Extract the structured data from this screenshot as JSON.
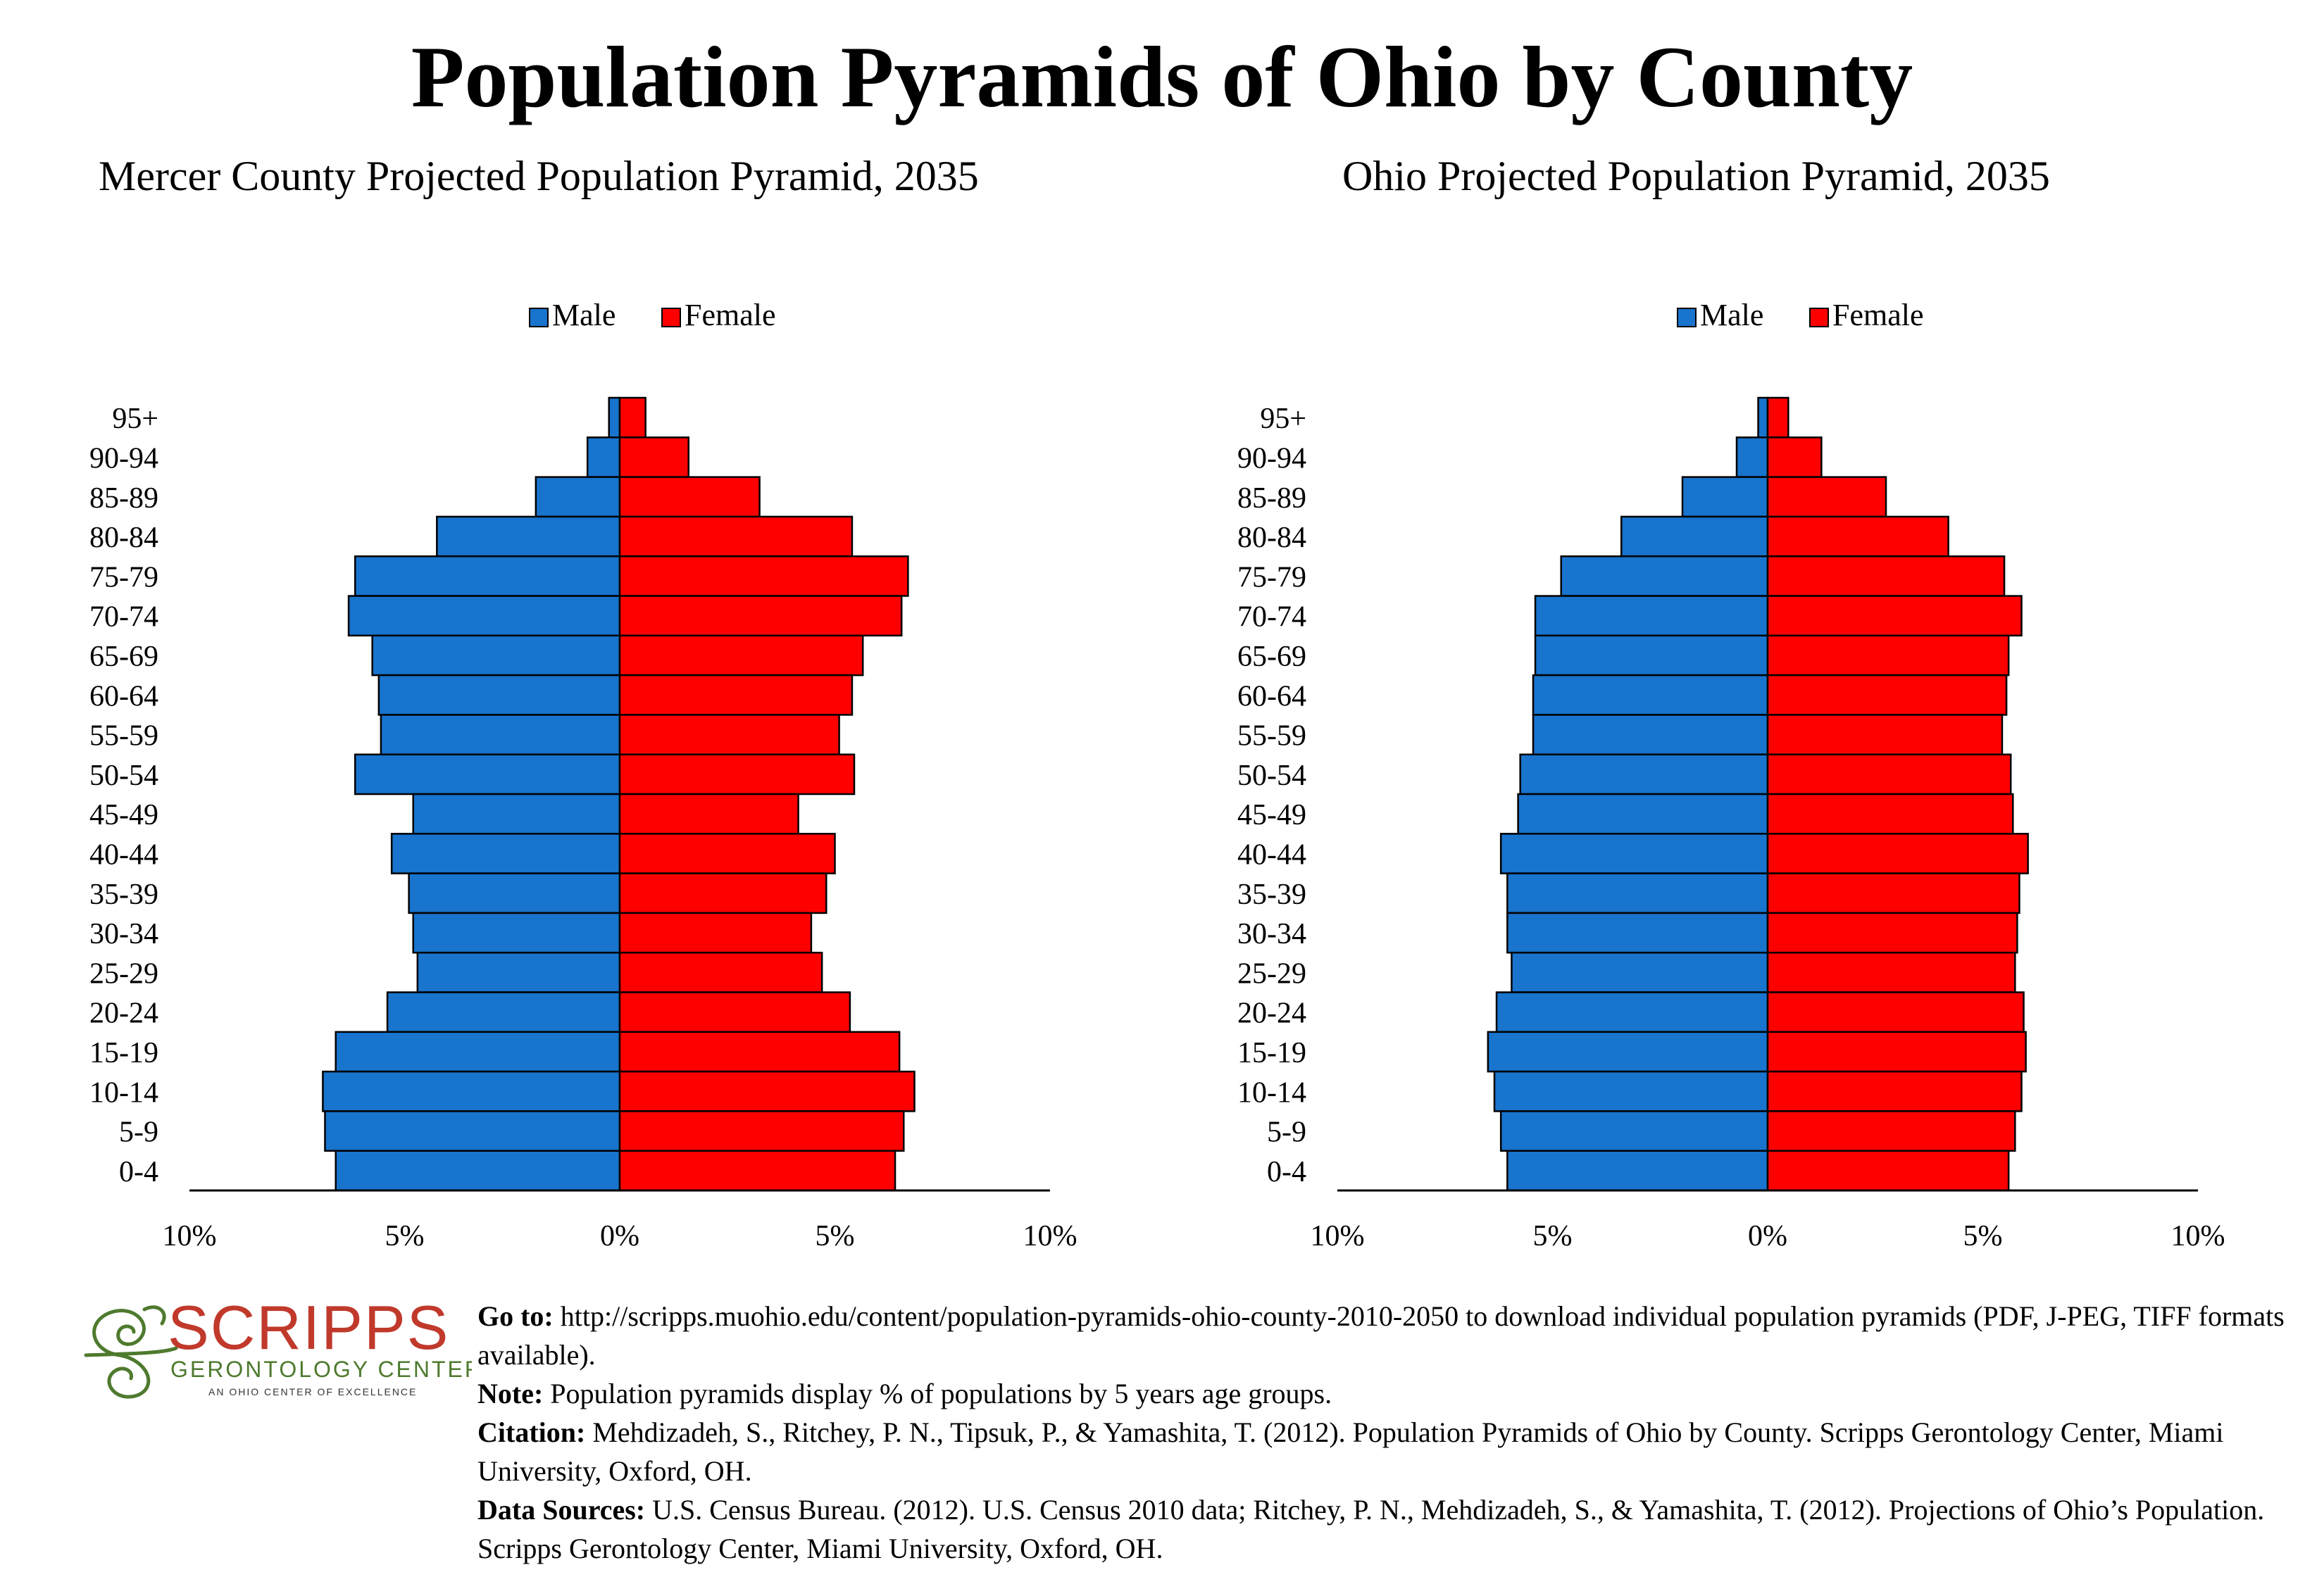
{
  "title": "Population Pyramids of Ohio by County",
  "legend": {
    "male": "Male",
    "female": "Female"
  },
  "colors": {
    "male": "#1874CD",
    "female": "#FF0000",
    "outline": "#000000",
    "logo_red": "#C0392B",
    "logo_green": "#4E7A2E"
  },
  "chart_data": [
    {
      "type": "bar",
      "orientation": "horizontal-pyramid",
      "title": "Mercer County Projected Population Pyramid, 2035",
      "categories": [
        "95+",
        "90-94",
        "85-89",
        "80-84",
        "75-79",
        "70-74",
        "65-69",
        "60-64",
        "55-59",
        "50-54",
        "45-49",
        "40-44",
        "35-39",
        "30-34",
        "25-29",
        "20-24",
        "15-19",
        "10-14",
        "5-9",
        "0-4"
      ],
      "series": [
        {
          "name": "Male",
          "values": [
            0.25,
            0.75,
            1.95,
            4.25,
            6.15,
            6.3,
            5.75,
            5.6,
            5.55,
            6.15,
            4.8,
            5.3,
            4.9,
            4.8,
            4.7,
            5.4,
            6.6,
            6.9,
            6.85,
            6.6
          ]
        },
        {
          "name": "Female",
          "values": [
            0.6,
            1.6,
            3.25,
            5.4,
            6.7,
            6.55,
            5.65,
            5.4,
            5.1,
            5.45,
            4.15,
            5.0,
            4.8,
            4.45,
            4.7,
            5.35,
            6.5,
            6.85,
            6.6,
            6.4
          ]
        }
      ],
      "xlim": [
        -10,
        10
      ],
      "xtick_labels": [
        "10%",
        "5%",
        "0%",
        "5%",
        "10%"
      ],
      "legend_position": "top-center",
      "grid": false
    },
    {
      "type": "bar",
      "orientation": "horizontal-pyramid",
      "title": "Ohio Projected Population Pyramid, 2035",
      "categories": [
        "95+",
        "90-94",
        "85-89",
        "80-84",
        "75-79",
        "70-74",
        "65-69",
        "60-64",
        "55-59",
        "50-54",
        "45-49",
        "40-44",
        "35-39",
        "30-34",
        "25-29",
        "20-24",
        "15-19",
        "10-14",
        "5-9",
        "0-4"
      ],
      "series": [
        {
          "name": "Male",
          "values": [
            0.22,
            0.72,
            1.98,
            3.4,
            4.8,
            5.4,
            5.4,
            5.45,
            5.45,
            5.75,
            5.8,
            6.2,
            6.05,
            6.05,
            5.95,
            6.3,
            6.5,
            6.35,
            6.2,
            6.05
          ]
        },
        {
          "name": "Female",
          "values": [
            0.48,
            1.25,
            2.75,
            4.2,
            5.5,
            5.9,
            5.6,
            5.55,
            5.45,
            5.65,
            5.7,
            6.05,
            5.85,
            5.8,
            5.75,
            5.95,
            6.0,
            5.9,
            5.75,
            5.6
          ]
        }
      ],
      "xlim": [
        -10,
        10
      ],
      "xtick_labels": [
        "10%",
        "5%",
        "0%",
        "5%",
        "10%"
      ],
      "legend_position": "top-center",
      "grid": false
    }
  ],
  "logo": {
    "name": "SCRIPPS",
    "sub": "GERONTOLOGY CENTER",
    "tagline": "AN OHIO CENTER OF EXCELLENCE"
  },
  "footer": {
    "goto_label": "Go to:",
    "goto_text": "http://scripps.muohio.edu/content/population-pyramids-ohio-county-2010-2050 to download individual population pyramids (PDF, J-PEG, TIFF formats available).",
    "note_label": "Note:",
    "note_text": "Population pyramids display % of populations by 5 years age groups.",
    "citation_label": "Citation:",
    "citation_text": "Mehdizadeh, S., Ritchey, P. N., Tipsuk, P., & Yamashita, T. (2012). Population Pyramids of Ohio by County. Scripps Gerontology Center, Miami University, Oxford, OH.",
    "sources_label": "Data Sources:",
    "sources_text": "U.S. Census Bureau. (2012). U.S. Census 2010 data; Ritchey, P. N., Mehdizadeh, S., & Yamashita, T. (2012). Projections of Ohio’s Population. Scripps Gerontology Center, Miami University, Oxford, OH."
  }
}
